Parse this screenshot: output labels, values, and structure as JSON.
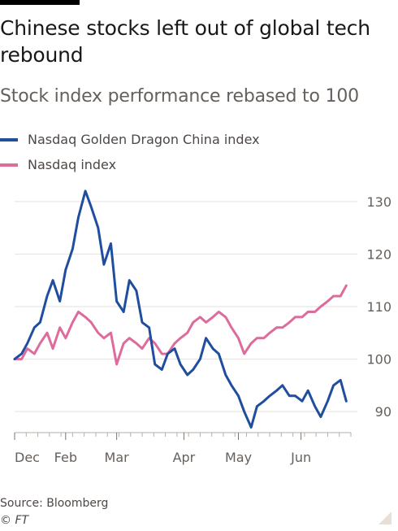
{
  "title": "Chinese stocks left out of global tech rebound",
  "subtitle": "Stock index performance rebased to 100",
  "source": "Source: Bloomberg",
  "copyright": "© FT",
  "colors": {
    "china": "#1f4e9e",
    "nasdaq": "#dd6b9c",
    "grid": "#e6e1db",
    "tick": "#66605c"
  },
  "chart_data": {
    "type": "line",
    "title": "Chinese stocks left out of global tech rebound",
    "subtitle": "Stock index performance rebased to 100",
    "xlabel": "",
    "ylabel": "",
    "ylim": [
      86,
      134
    ],
    "yticks": [
      90,
      100,
      110,
      120,
      130
    ],
    "ytick_labels": [
      "90",
      "100",
      "110",
      "120",
      "130"
    ],
    "grid": true,
    "legend": "top-left",
    "x_index_range": [
      0,
      29
    ],
    "xticks": [
      {
        "x": 0,
        "label": "Dec"
      },
      {
        "x": 4.4,
        "label": "Feb"
      },
      {
        "x": 8.8,
        "label": "Mar"
      },
      {
        "x": 14.6,
        "label": "Apr"
      },
      {
        "x": 19.3,
        "label": "May"
      },
      {
        "x": 24.7,
        "label": "Jun"
      }
    ],
    "series": [
      {
        "name": "Nasdaq Golden Dragon China index",
        "color": "#1f4e9e",
        "x": [
          0,
          0.6,
          1.1,
          1.7,
          2.2,
          2.8,
          3.3,
          3.9,
          4.4,
          5.0,
          5.5,
          6.1,
          6.6,
          7.2,
          7.7,
          8.3,
          8.8,
          9.4,
          9.9,
          10.5,
          11.0,
          11.6,
          12.1,
          12.7,
          13.2,
          13.8,
          14.3,
          14.9,
          15.4,
          16.0,
          16.5,
          17.1,
          17.6,
          18.2,
          18.7,
          19.3,
          19.8,
          20.4,
          20.9,
          21.5,
          22.0,
          22.6,
          23.1,
          23.7,
          24.2,
          24.8,
          25.3,
          25.9,
          26.4,
          27.0,
          27.5,
          28.1,
          28.6
        ],
        "values": [
          100,
          101,
          103,
          106,
          107,
          112,
          115,
          111,
          117,
          121,
          127,
          132,
          129,
          125,
          118,
          122,
          111,
          109,
          115,
          113,
          107,
          106,
          99,
          98,
          101,
          102,
          99,
          97,
          98,
          100,
          104,
          102,
          101,
          97,
          95,
          93,
          90,
          87,
          91,
          92,
          93,
          94,
          95,
          93,
          93,
          92,
          94,
          91,
          89,
          92,
          95,
          96,
          92
        ]
      },
      {
        "name": "Nasdaq index",
        "color": "#dd6b9c",
        "x": [
          0,
          0.6,
          1.1,
          1.7,
          2.2,
          2.8,
          3.3,
          3.9,
          4.4,
          5.0,
          5.5,
          6.1,
          6.6,
          7.2,
          7.7,
          8.3,
          8.8,
          9.4,
          9.9,
          10.5,
          11.0,
          11.6,
          12.1,
          12.7,
          13.2,
          13.8,
          14.3,
          14.9,
          15.4,
          16.0,
          16.5,
          17.1,
          17.6,
          18.2,
          18.7,
          19.3,
          19.8,
          20.4,
          20.9,
          21.5,
          22.0,
          22.6,
          23.1,
          23.7,
          24.2,
          24.8,
          25.3,
          25.9,
          26.4,
          27.0,
          27.5,
          28.1,
          28.6
        ],
        "values": [
          100,
          100,
          102,
          101,
          103,
          105,
          102,
          106,
          104,
          107,
          109,
          108,
          107,
          105,
          104,
          105,
          99,
          103,
          104,
          103,
          102,
          104,
          103,
          101,
          101,
          103,
          104,
          105,
          107,
          108,
          107,
          108,
          109,
          108,
          106,
          104,
          101,
          103,
          104,
          104,
          105,
          106,
          106,
          107,
          108,
          108,
          109,
          109,
          110,
          111,
          112,
          112,
          114
        ]
      }
    ]
  }
}
